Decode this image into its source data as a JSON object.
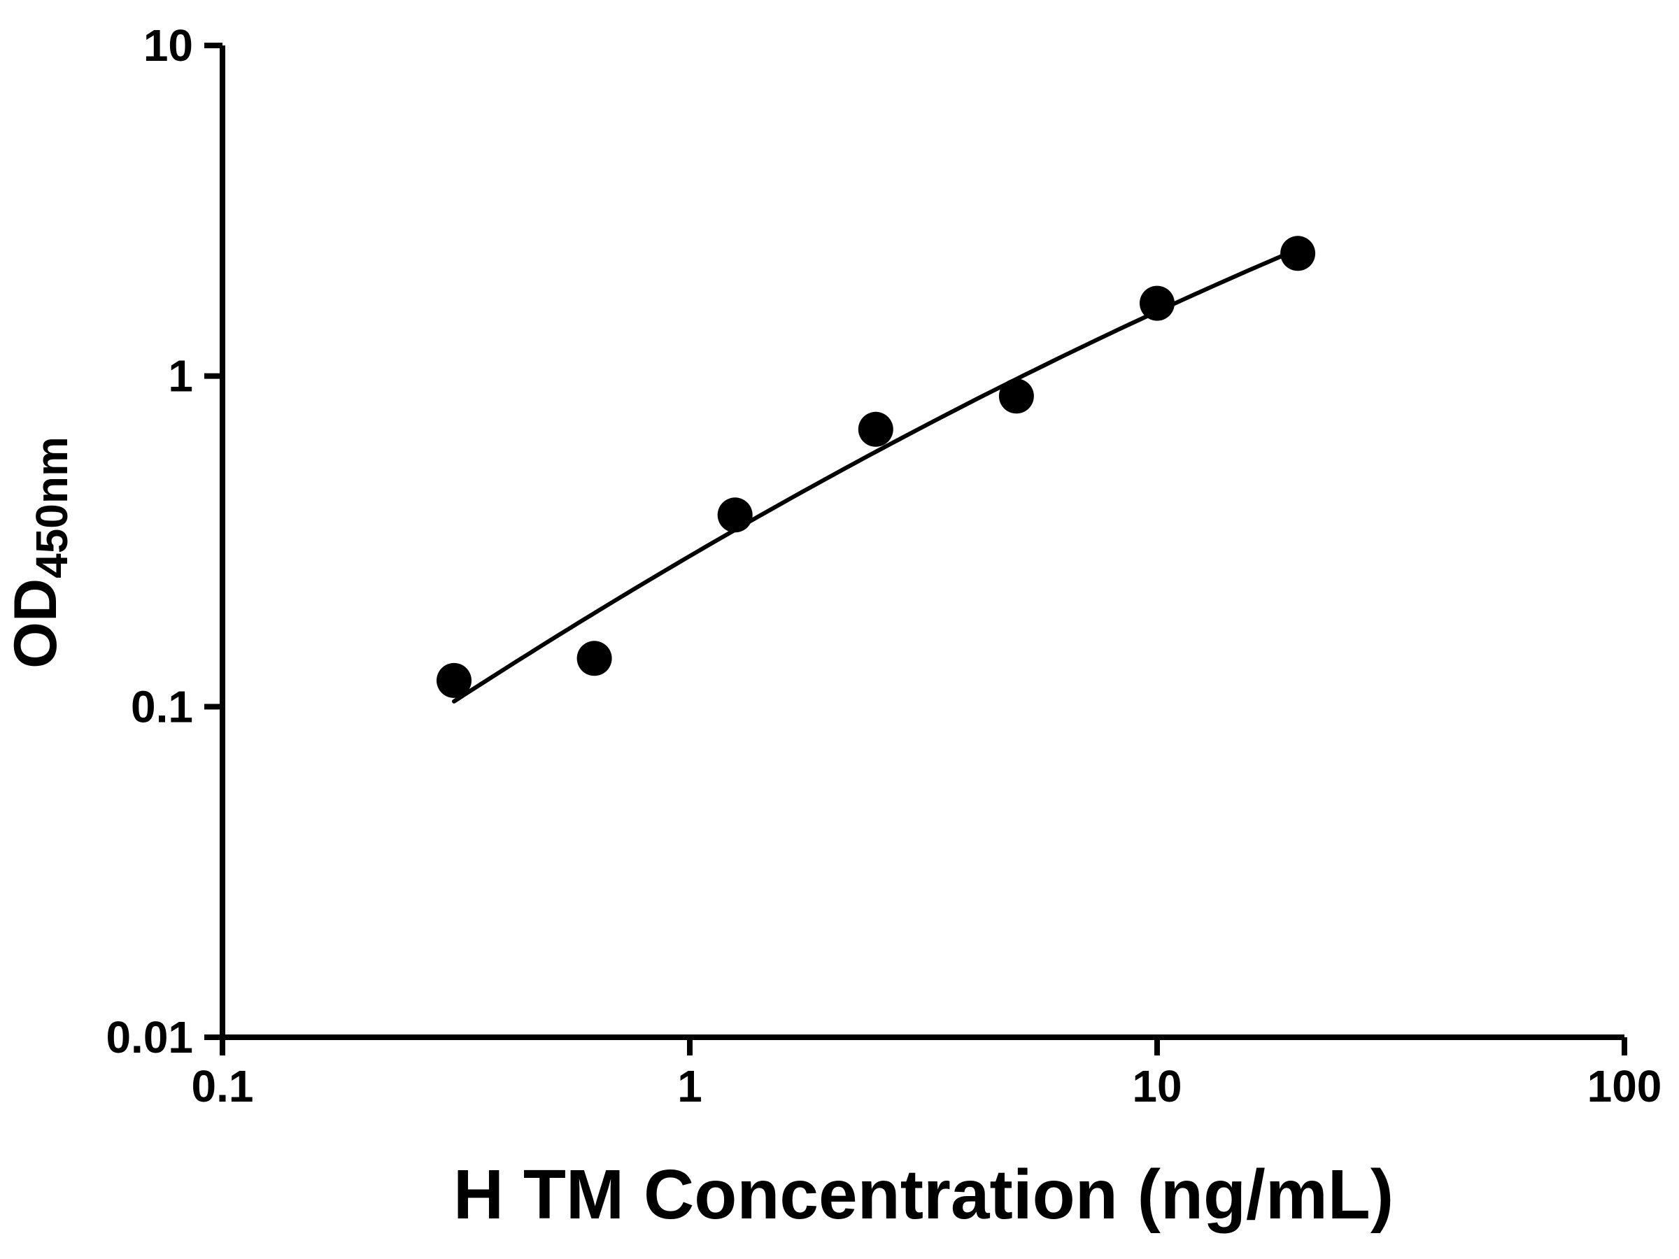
{
  "chart_data": {
    "type": "scatter",
    "title": "",
    "xlabel": "H TM Concentration (ng/mL)",
    "ylabel_main": "OD",
    "ylabel_sub": "450nm",
    "x_scale": "log",
    "y_scale": "log",
    "xlim": [
      0.1,
      100
    ],
    "ylim": [
      0.01,
      10
    ],
    "x_ticks": [
      0.1,
      1,
      10,
      100
    ],
    "x_tick_labels": [
      "0.1",
      "1",
      "10",
      "100"
    ],
    "y_ticks": [
      0.01,
      0.1,
      1,
      10
    ],
    "y_tick_labels": [
      "0.01",
      "0.1",
      "1",
      "10"
    ],
    "points": [
      {
        "x": 0.313,
        "y": 0.12
      },
      {
        "x": 0.625,
        "y": 0.14
      },
      {
        "x": 1.25,
        "y": 0.38
      },
      {
        "x": 2.5,
        "y": 0.69
      },
      {
        "x": 5,
        "y": 0.87
      },
      {
        "x": 10,
        "y": 1.66
      },
      {
        "x": 20,
        "y": 2.35
      }
    ],
    "fit_curve": "smooth-fit-through-points-loglog",
    "legend": "none",
    "grid": "off",
    "marker_color": "#000000",
    "line_color": "#000000",
    "axis_color": "#000000",
    "background": "#ffffff"
  }
}
